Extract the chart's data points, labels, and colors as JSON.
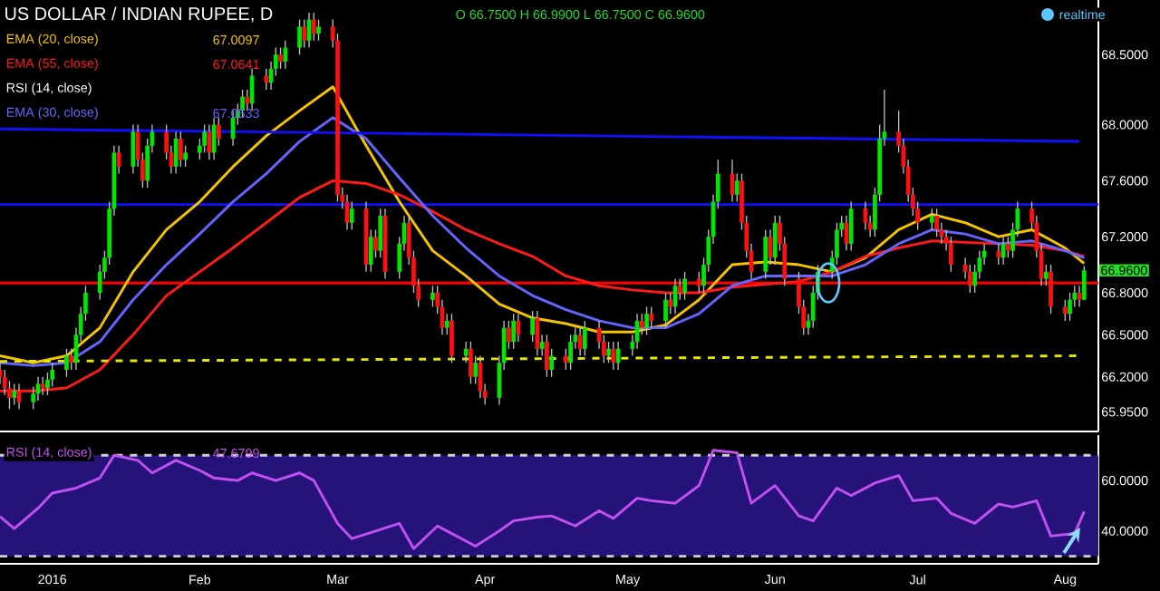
{
  "chart_data": [
    {
      "type": "candlestick",
      "title": "US DOLLAR / INDIAN RUPEE, D",
      "x": [
        "2015-12-21",
        "2015-12-22",
        "2015-12-23",
        "2015-12-24",
        "2015-12-25",
        "2015-12-28",
        "2015-12-29",
        "2015-12-30",
        "2015-12-31",
        "2016-01-01",
        "2016-01-04",
        "2016-01-05",
        "2016-01-06",
        "2016-01-07",
        "2016-01-08",
        "2016-01-11",
        "2016-01-12",
        "2016-01-13",
        "2016-01-14",
        "2016-01-15",
        "2016-01-18",
        "2016-01-19",
        "2016-01-20",
        "2016-01-21",
        "2016-01-22",
        "2016-01-25",
        "2016-01-26",
        "2016-01-27",
        "2016-01-28",
        "2016-01-29",
        "2016-02-01",
        "2016-02-02",
        "2016-02-03",
        "2016-02-04",
        "2016-02-05",
        "2016-02-08",
        "2016-02-09",
        "2016-02-10",
        "2016-02-11",
        "2016-02-12",
        "2016-02-15",
        "2016-02-16",
        "2016-02-17",
        "2016-02-18",
        "2016-02-19",
        "2016-02-22",
        "2016-02-23",
        "2016-02-24",
        "2016-02-25",
        "2016-02-26",
        "2016-02-29",
        "2016-03-01",
        "2016-03-02",
        "2016-03-03",
        "2016-03-04",
        "2016-03-07",
        "2016-03-08",
        "2016-03-09",
        "2016-03-10",
        "2016-03-11",
        "2016-03-14",
        "2016-03-15",
        "2016-03-16",
        "2016-03-17",
        "2016-03-18",
        "2016-03-21",
        "2016-03-22",
        "2016-03-23",
        "2016-03-24",
        "2016-03-25",
        "2016-03-28",
        "2016-03-29",
        "2016-03-30",
        "2016-03-31",
        "2016-04-01",
        "2016-04-04",
        "2016-04-05",
        "2016-04-06",
        "2016-04-07",
        "2016-04-08",
        "2016-04-11",
        "2016-04-12",
        "2016-04-13",
        "2016-04-14",
        "2016-04-15",
        "2016-04-18",
        "2016-04-19",
        "2016-04-20",
        "2016-04-21",
        "2016-04-22",
        "2016-04-25",
        "2016-04-26",
        "2016-04-27",
        "2016-04-28",
        "2016-04-29",
        "2016-05-02",
        "2016-05-03",
        "2016-05-04",
        "2016-05-05",
        "2016-05-06",
        "2016-05-09",
        "2016-05-10",
        "2016-05-11",
        "2016-05-12",
        "2016-05-13",
        "2016-05-16",
        "2016-05-17",
        "2016-05-18",
        "2016-05-19",
        "2016-05-20",
        "2016-05-23",
        "2016-05-24",
        "2016-05-25",
        "2016-05-26",
        "2016-05-27",
        "2016-05-30",
        "2016-05-31",
        "2016-06-01",
        "2016-06-02",
        "2016-06-03",
        "2016-06-06",
        "2016-06-07",
        "2016-06-08",
        "2016-06-09",
        "2016-06-10",
        "2016-06-13",
        "2016-06-14",
        "2016-06-15",
        "2016-06-16",
        "2016-06-17",
        "2016-06-20",
        "2016-06-21",
        "2016-06-22",
        "2016-06-23",
        "2016-06-24",
        "2016-06-27",
        "2016-06-28",
        "2016-06-29",
        "2016-06-30",
        "2016-07-01",
        "2016-07-04",
        "2016-07-05",
        "2016-07-06",
        "2016-07-07",
        "2016-07-08",
        "2016-07-11",
        "2016-07-12",
        "2016-07-13",
        "2016-07-14",
        "2016-07-15",
        "2016-07-18",
        "2016-07-19",
        "2016-07-20",
        "2016-07-21",
        "2016-07-22",
        "2016-07-25",
        "2016-07-26",
        "2016-07-27",
        "2016-07-28",
        "2016-07-29",
        "2016-08-01",
        "2016-08-02",
        "2016-08-03",
        "2016-08-04",
        "2016-08-05"
      ],
      "ohlc": [
        [
          66.25,
          66.3,
          66.15,
          66.2
        ],
        [
          66.2,
          66.25,
          66.07,
          66.12
        ],
        [
          66.12,
          66.17,
          65.97,
          66.05
        ],
        [
          66.05,
          66.15,
          66.0,
          66.1
        ],
        [
          66.1,
          66.15,
          65.97,
          66.02
        ],
        [
          66.02,
          66.13,
          65.97,
          66.08
        ],
        [
          66.08,
          66.2,
          66.03,
          66.15
        ],
        [
          66.15,
          66.2,
          66.07,
          66.12
        ],
        [
          66.12,
          66.23,
          66.07,
          66.18
        ],
        [
          66.18,
          66.3,
          66.13,
          66.25
        ],
        [
          66.25,
          66.4,
          66.2,
          66.35
        ],
        [
          66.35,
          66.4,
          66.25,
          66.3
        ],
        [
          66.3,
          66.55,
          66.25,
          66.5
        ],
        [
          66.5,
          66.7,
          66.45,
          66.65
        ],
        [
          66.65,
          66.85,
          66.6,
          66.8
        ],
        [
          66.8,
          67.0,
          66.75,
          66.95
        ],
        [
          66.95,
          67.1,
          66.9,
          67.05
        ],
        [
          67.05,
          67.45,
          67.0,
          67.4
        ],
        [
          67.4,
          67.85,
          67.35,
          67.8
        ],
        [
          67.8,
          67.85,
          67.65,
          67.7
        ],
        [
          67.7,
          68.0,
          67.65,
          67.95
        ],
        [
          67.95,
          68.0,
          67.7,
          67.75
        ],
        [
          67.75,
          67.8,
          67.55,
          67.6
        ],
        [
          67.6,
          67.9,
          67.55,
          67.85
        ],
        [
          67.85,
          68.0,
          67.8,
          67.95
        ],
        [
          67.95,
          68.0,
          67.75,
          67.8
        ],
        [
          67.8,
          67.85,
          67.65,
          67.7
        ],
        [
          67.7,
          67.95,
          67.65,
          67.9
        ],
        [
          67.9,
          67.95,
          67.7,
          67.75
        ],
        [
          67.75,
          67.85,
          67.7,
          67.8
        ],
        [
          67.8,
          67.9,
          67.75,
          67.85
        ],
        [
          67.85,
          68.0,
          67.8,
          67.95
        ],
        [
          67.95,
          68.0,
          67.75,
          67.8
        ],
        [
          67.8,
          68.05,
          67.75,
          68.0
        ],
        [
          68.0,
          68.05,
          67.85,
          67.9
        ],
        [
          67.9,
          68.1,
          67.85,
          68.05
        ],
        [
          68.05,
          68.15,
          68.0,
          68.1
        ],
        [
          68.1,
          68.25,
          68.05,
          68.2
        ],
        [
          68.2,
          68.25,
          68.1,
          68.15
        ],
        [
          68.15,
          68.4,
          68.1,
          68.35
        ],
        [
          68.35,
          68.4,
          68.25,
          68.3
        ],
        [
          68.3,
          68.45,
          68.25,
          68.4
        ],
        [
          68.4,
          68.55,
          68.35,
          68.5
        ],
        [
          68.5,
          68.55,
          68.4,
          68.45
        ],
        [
          68.45,
          68.6,
          68.4,
          68.55
        ],
        [
          68.55,
          68.75,
          68.5,
          68.7
        ],
        [
          68.7,
          68.75,
          68.55,
          68.6
        ],
        [
          68.6,
          68.8,
          68.55,
          68.75
        ],
        [
          68.75,
          68.8,
          68.6,
          68.65
        ],
        [
          68.65,
          68.75,
          68.6,
          68.7
        ],
        [
          68.7,
          68.75,
          68.55,
          68.6
        ],
        [
          68.6,
          68.65,
          67.45,
          67.5
        ],
        [
          67.5,
          67.55,
          67.4,
          67.45
        ],
        [
          67.45,
          67.5,
          67.25,
          67.3
        ],
        [
          67.3,
          67.45,
          67.25,
          67.4
        ],
        [
          67.4,
          67.45,
          66.95,
          67.0
        ],
        [
          67.0,
          67.25,
          66.95,
          67.2
        ],
        [
          67.2,
          67.25,
          67.05,
          67.1
        ],
        [
          67.1,
          67.4,
          67.05,
          67.35
        ],
        [
          67.35,
          67.4,
          66.9,
          66.95
        ],
        [
          66.95,
          67.2,
          66.9,
          67.15
        ],
        [
          67.15,
          67.35,
          67.1,
          67.3
        ],
        [
          67.3,
          67.35,
          67.0,
          67.05
        ],
        [
          67.05,
          67.1,
          66.8,
          66.85
        ],
        [
          66.85,
          66.9,
          66.7,
          66.75
        ],
        [
          66.75,
          66.85,
          66.7,
          66.8
        ],
        [
          66.8,
          66.85,
          66.65,
          66.7
        ],
        [
          66.7,
          66.75,
          66.5,
          66.55
        ],
        [
          66.55,
          66.65,
          66.5,
          66.6
        ],
        [
          66.6,
          66.65,
          66.3,
          66.35
        ],
        [
          66.35,
          66.45,
          66.3,
          66.4
        ],
        [
          66.4,
          66.45,
          66.15,
          66.2
        ],
        [
          66.2,
          66.35,
          66.15,
          66.3
        ],
        [
          66.3,
          66.35,
          66.05,
          66.1
        ],
        [
          66.1,
          66.15,
          66.0,
          66.05
        ],
        [
          66.05,
          66.35,
          66.0,
          66.3
        ],
        [
          66.3,
          66.6,
          66.25,
          66.55
        ],
        [
          66.55,
          66.6,
          66.4,
          66.45
        ],
        [
          66.45,
          66.65,
          66.4,
          66.6
        ],
        [
          66.6,
          66.65,
          66.45,
          66.5
        ],
        [
          66.5,
          66.67,
          66.45,
          66.62
        ],
        [
          66.62,
          66.67,
          66.35,
          66.4
        ],
        [
          66.4,
          66.5,
          66.35,
          66.45
        ],
        [
          66.45,
          66.5,
          66.2,
          66.25
        ],
        [
          66.25,
          66.4,
          66.2,
          66.35
        ],
        [
          66.35,
          66.4,
          66.25,
          66.3
        ],
        [
          66.3,
          66.5,
          66.25,
          66.45
        ],
        [
          66.45,
          66.55,
          66.4,
          66.5
        ],
        [
          66.5,
          66.55,
          66.35,
          66.4
        ],
        [
          66.4,
          66.6,
          66.35,
          66.55
        ],
        [
          66.55,
          66.6,
          66.4,
          66.45
        ],
        [
          66.45,
          66.5,
          66.3,
          66.35
        ],
        [
          66.35,
          66.45,
          66.3,
          66.4
        ],
        [
          66.4,
          66.45,
          66.25,
          66.3
        ],
        [
          66.3,
          66.45,
          66.25,
          66.4
        ],
        [
          66.4,
          66.5,
          66.35,
          66.45
        ],
        [
          66.45,
          66.65,
          66.4,
          66.6
        ],
        [
          66.6,
          66.65,
          66.5,
          66.55
        ],
        [
          66.55,
          66.7,
          66.5,
          66.65
        ],
        [
          66.65,
          66.7,
          66.55,
          66.6
        ],
        [
          66.6,
          66.8,
          66.55,
          66.75
        ],
        [
          66.75,
          66.8,
          66.65,
          66.7
        ],
        [
          66.7,
          66.9,
          66.65,
          66.85
        ],
        [
          66.85,
          66.9,
          66.75,
          66.8
        ],
        [
          66.8,
          66.95,
          66.75,
          66.9
        ],
        [
          66.9,
          66.95,
          66.8,
          66.85
        ],
        [
          66.85,
          67.05,
          66.8,
          67.0
        ],
        [
          67.0,
          67.25,
          66.95,
          67.2
        ],
        [
          67.2,
          67.5,
          67.15,
          67.45
        ],
        [
          67.45,
          67.75,
          67.4,
          67.65
        ],
        [
          67.65,
          67.75,
          67.45,
          67.5
        ],
        [
          67.5,
          67.65,
          67.45,
          67.6
        ],
        [
          67.6,
          67.65,
          67.25,
          67.3
        ],
        [
          67.3,
          67.35,
          67.05,
          67.1
        ],
        [
          67.1,
          67.15,
          66.9,
          66.95
        ],
        [
          66.95,
          67.25,
          66.9,
          67.2
        ],
        [
          67.2,
          67.25,
          67.0,
          67.05
        ],
        [
          67.05,
          67.35,
          67.0,
          67.3
        ],
        [
          67.3,
          67.35,
          67.1,
          67.15
        ],
        [
          67.15,
          67.2,
          66.85,
          66.9
        ],
        [
          66.9,
          66.95,
          66.65,
          66.7
        ],
        [
          66.7,
          66.75,
          66.5,
          66.55
        ],
        [
          66.55,
          66.65,
          66.5,
          66.6
        ],
        [
          66.6,
          66.85,
          66.55,
          66.8
        ],
        [
          66.8,
          67.0,
          66.75,
          66.95
        ],
        [
          66.95,
          67.1,
          66.9,
          67.05
        ],
        [
          67.05,
          67.3,
          67.0,
          67.25
        ],
        [
          67.25,
          67.35,
          67.2,
          67.3
        ],
        [
          67.3,
          67.35,
          67.1,
          67.15
        ],
        [
          67.15,
          67.45,
          67.1,
          67.4
        ],
        [
          67.4,
          67.45,
          67.25,
          67.3
        ],
        [
          67.3,
          67.35,
          67.2,
          67.25
        ],
        [
          67.25,
          67.55,
          67.2,
          67.5
        ],
        [
          67.5,
          68.0,
          67.45,
          67.9
        ],
        [
          67.9,
          68.25,
          67.85,
          67.95
        ],
        [
          67.95,
          68.1,
          67.8,
          67.85
        ],
        [
          67.85,
          67.9,
          67.65,
          67.7
        ],
        [
          67.7,
          67.75,
          67.45,
          67.5
        ],
        [
          67.5,
          67.55,
          67.35,
          67.4
        ],
        [
          67.4,
          67.45,
          67.25,
          67.3
        ],
        [
          67.3,
          67.4,
          67.25,
          67.35
        ],
        [
          67.35,
          67.4,
          67.2,
          67.25
        ],
        [
          67.25,
          67.3,
          67.15,
          67.2
        ],
        [
          67.2,
          67.25,
          67.1,
          67.15
        ],
        [
          67.15,
          67.2,
          66.95,
          67.0
        ],
        [
          67.0,
          67.05,
          66.9,
          66.95
        ],
        [
          66.95,
          67.0,
          66.8,
          66.85
        ],
        [
          66.85,
          67.0,
          66.8,
          66.95
        ],
        [
          66.95,
          67.1,
          66.9,
          67.05
        ],
        [
          67.05,
          67.15,
          67.0,
          67.1
        ],
        [
          67.1,
          67.15,
          67.0,
          67.05
        ],
        [
          67.05,
          67.2,
          67.0,
          67.15
        ],
        [
          67.15,
          67.2,
          67.05,
          67.1
        ],
        [
          67.1,
          67.3,
          67.05,
          67.25
        ],
        [
          67.25,
          67.45,
          67.2,
          67.4
        ],
        [
          67.4,
          67.45,
          67.25,
          67.3
        ],
        [
          67.3,
          67.35,
          67.05,
          67.1
        ],
        [
          67.1,
          67.15,
          66.85,
          66.9
        ],
        [
          66.9,
          67.0,
          66.85,
          66.95
        ],
        [
          66.95,
          67.0,
          66.65,
          66.7
        ],
        [
          66.7,
          66.75,
          66.6,
          66.65
        ],
        [
          66.65,
          66.8,
          66.6,
          66.75
        ],
        [
          66.75,
          66.85,
          66.7,
          66.8
        ],
        [
          66.8,
          66.85,
          66.7,
          66.75
        ],
        [
          66.75,
          66.99,
          66.75,
          66.96
        ]
      ],
      "series": [
        {
          "name": "EMA (20, close)",
          "type": "line",
          "color": "#f5c400",
          "x": [
            "2015-12-21",
            "2015-12-28",
            "2016-01-04",
            "2016-01-11",
            "2016-01-18",
            "2016-01-25",
            "2016-02-01",
            "2016-02-08",
            "2016-02-15",
            "2016-02-22",
            "2016-02-29",
            "2016-03-07",
            "2016-03-14",
            "2016-03-21",
            "2016-03-28",
            "2016-04-04",
            "2016-04-11",
            "2016-04-18",
            "2016-04-25",
            "2016-05-02",
            "2016-05-09",
            "2016-05-16",
            "2016-05-23",
            "2016-05-30",
            "2016-06-06",
            "2016-06-13",
            "2016-06-20",
            "2016-06-27",
            "2016-07-04",
            "2016-07-11",
            "2016-07-18",
            "2016-07-25",
            "2016-08-01",
            "2016-08-05"
          ],
          "values": [
            66.35,
            66.3,
            66.35,
            66.55,
            66.95,
            67.25,
            67.45,
            67.7,
            67.92,
            68.1,
            68.27,
            67.85,
            67.45,
            67.1,
            66.92,
            66.72,
            66.62,
            66.58,
            66.52,
            66.52,
            66.57,
            66.75,
            67.0,
            67.02,
            67.0,
            66.95,
            67.05,
            67.25,
            67.36,
            67.3,
            67.2,
            67.25,
            67.12,
            67.01
          ]
        },
        {
          "name": "EMA (55, close)",
          "type": "line",
          "color": "#ff1a1a",
          "x": [
            "2015-12-21",
            "2015-12-28",
            "2016-01-04",
            "2016-01-11",
            "2016-01-18",
            "2016-01-25",
            "2016-02-01",
            "2016-02-08",
            "2016-02-15",
            "2016-02-22",
            "2016-02-29",
            "2016-03-07",
            "2016-03-14",
            "2016-03-21",
            "2016-03-28",
            "2016-04-04",
            "2016-04-11",
            "2016-04-18",
            "2016-04-25",
            "2016-05-02",
            "2016-05-09",
            "2016-05-16",
            "2016-05-23",
            "2016-05-30",
            "2016-06-06",
            "2016-06-13",
            "2016-06-20",
            "2016-06-27",
            "2016-07-04",
            "2016-07-11",
            "2016-07-18",
            "2016-07-25",
            "2016-08-01",
            "2016-08-05"
          ],
          "values": [
            66.1,
            66.1,
            66.12,
            66.25,
            66.5,
            66.78,
            66.95,
            67.12,
            67.3,
            67.48,
            67.6,
            67.58,
            67.5,
            67.38,
            67.25,
            67.15,
            67.06,
            66.92,
            66.85,
            66.82,
            66.8,
            66.8,
            66.84,
            66.86,
            66.88,
            66.95,
            67.06,
            67.12,
            67.17,
            67.16,
            67.15,
            67.14,
            67.1,
            67.06
          ]
        },
        {
          "name": "EMA (30, close)",
          "type": "line",
          "color": "#6464ff",
          "x": [
            "2015-12-21",
            "2015-12-28",
            "2016-01-04",
            "2016-01-11",
            "2016-01-18",
            "2016-01-25",
            "2016-02-01",
            "2016-02-08",
            "2016-02-15",
            "2016-02-22",
            "2016-02-29",
            "2016-03-07",
            "2016-03-14",
            "2016-03-21",
            "2016-03-28",
            "2016-04-04",
            "2016-04-11",
            "2016-04-18",
            "2016-04-25",
            "2016-05-02",
            "2016-05-09",
            "2016-05-16",
            "2016-05-23",
            "2016-05-30",
            "2016-06-06",
            "2016-06-13",
            "2016-06-20",
            "2016-06-27",
            "2016-07-04",
            "2016-07-11",
            "2016-07-18",
            "2016-07-25",
            "2016-08-01",
            "2016-08-05"
          ],
          "values": [
            66.3,
            66.28,
            66.3,
            66.45,
            66.75,
            67.0,
            67.22,
            67.45,
            67.65,
            67.88,
            68.05,
            67.9,
            67.62,
            67.35,
            67.12,
            66.92,
            66.78,
            66.68,
            66.6,
            66.55,
            66.55,
            66.65,
            66.85,
            66.92,
            66.92,
            66.92,
            67.0,
            67.15,
            67.25,
            67.22,
            67.15,
            67.17,
            67.1,
            67.05
          ]
        },
        {
          "type": "line",
          "color": "#1010ff",
          "x": [
            "2015-12-21",
            "2016-08-04"
          ],
          "values": [
            67.97,
            67.88
          ]
        },
        {
          "type": "line",
          "color": "#e6e600",
          "line_style": "dashed",
          "x": [
            "2015-12-21",
            "2016-08-04"
          ],
          "values": [
            66.31,
            66.35
          ]
        }
      ],
      "ref_lines": [
        {
          "axis": "y",
          "value": 67.43,
          "color": "#1010ff"
        },
        {
          "axis": "y",
          "value": 66.87,
          "color": "#ff0000"
        }
      ],
      "annotations": [
        "O 66.7500 H 66.9900 L 66.7500 C 66.9600",
        "realtime",
        "RSI (14, close)",
        "67.0097",
        "67.0641",
        "67.0533",
        {
          "text": "66.9600",
          "x": "2016-08-05",
          "y": 66.96
        }
      ],
      "legend": "top left",
      "xlim": [
        "2015-12-21",
        "2016-08-08"
      ],
      "ylim": [
        65.81,
        68.89
      ],
      "yticks": [
        {
          "value": 65.95,
          "label": "65.9500"
        },
        {
          "value": 66.2,
          "label": "66.2000"
        },
        {
          "value": 66.5,
          "label": "66.5000"
        },
        {
          "value": 66.8,
          "label": "66.8000"
        },
        {
          "value": 67.2,
          "label": "67.2000"
        },
        {
          "value": 67.6,
          "label": "67.6000"
        },
        {
          "value": 68.0,
          "label": "68.0000"
        },
        {
          "value": 68.5,
          "label": "68.5000"
        }
      ],
      "tick_labels": "y"
    },
    {
      "type": "line",
      "series": [
        {
          "name": "RSI (14, close)",
          "color": "#c050f0",
          "x": [
            "2015-12-21",
            "2015-12-24",
            "2015-12-29",
            "2016-01-01",
            "2016-01-06",
            "2016-01-11",
            "2016-01-14",
            "2016-01-19",
            "2016-01-22",
            "2016-01-27",
            "2016-02-01",
            "2016-02-04",
            "2016-02-09",
            "2016-02-12",
            "2016-02-17",
            "2016-02-22",
            "2016-02-25",
            "2016-03-01",
            "2016-03-04",
            "2016-03-09",
            "2016-03-14",
            "2016-03-17",
            "2016-03-22",
            "2016-03-25",
            "2016-03-30",
            "2016-04-04",
            "2016-04-07",
            "2016-04-12",
            "2016-04-15",
            "2016-04-20",
            "2016-04-25",
            "2016-04-28",
            "2016-05-03",
            "2016-05-06",
            "2016-05-11",
            "2016-05-16",
            "2016-05-19",
            "2016-05-24",
            "2016-05-27",
            "2016-06-01",
            "2016-06-06",
            "2016-06-09",
            "2016-06-14",
            "2016-06-17",
            "2016-06-22",
            "2016-06-27",
            "2016-06-30",
            "2016-07-05",
            "2016-07-08",
            "2016-07-13",
            "2016-07-18",
            "2016-07-21",
            "2016-07-26",
            "2016-07-29",
            "2016-08-03",
            "2016-08-05"
          ],
          "values": [
            45.7,
            41,
            49,
            55,
            57,
            61,
            70,
            68,
            63,
            68,
            64,
            61,
            60,
            63,
            60,
            63,
            60,
            43,
            37,
            40,
            43,
            33,
            42,
            39,
            34,
            40,
            44,
            45.5,
            46,
            42,
            48,
            45,
            53,
            52,
            51,
            58,
            72,
            71,
            51,
            58,
            46,
            44,
            57,
            54,
            59,
            62,
            52,
            53,
            47,
            43,
            50.7,
            49.5,
            52,
            38,
            39,
            47.7
          ]
        }
      ],
      "bands": [
        {
          "axis": "y",
          "from": 30,
          "to": 70,
          "color": "#26137a"
        }
      ],
      "ref_lines": [
        {
          "axis": "y",
          "value": 70,
          "color": "#d0d0d0",
          "line_style": "dashed"
        },
        {
          "axis": "y",
          "value": 30,
          "color": "#d0d0d0",
          "line_style": "dashed"
        }
      ],
      "annotations": [
        "47.6799"
      ],
      "legend": "top left",
      "xlim": [
        "2015-12-21",
        "2016-08-08"
      ],
      "ylim": [
        27,
        78
      ],
      "yticks": [
        {
          "value": 40,
          "label": "40.0000"
        },
        {
          "value": 60,
          "label": "60.0000"
        }
      ],
      "xticks": [
        {
          "value": "2016-01-01",
          "label": "2016"
        },
        {
          "value": "2016-02-01",
          "label": "Feb"
        },
        {
          "value": "2016-03-01",
          "label": "Mar"
        },
        {
          "value": "2016-04-01",
          "label": "Apr"
        },
        {
          "value": "2016-05-01",
          "label": "May"
        },
        {
          "value": "2016-06-01",
          "label": "Jun"
        },
        {
          "value": "2016-07-01",
          "label": "Jul"
        },
        {
          "value": "2016-08-01",
          "label": "Aug"
        }
      ]
    }
  ]
}
